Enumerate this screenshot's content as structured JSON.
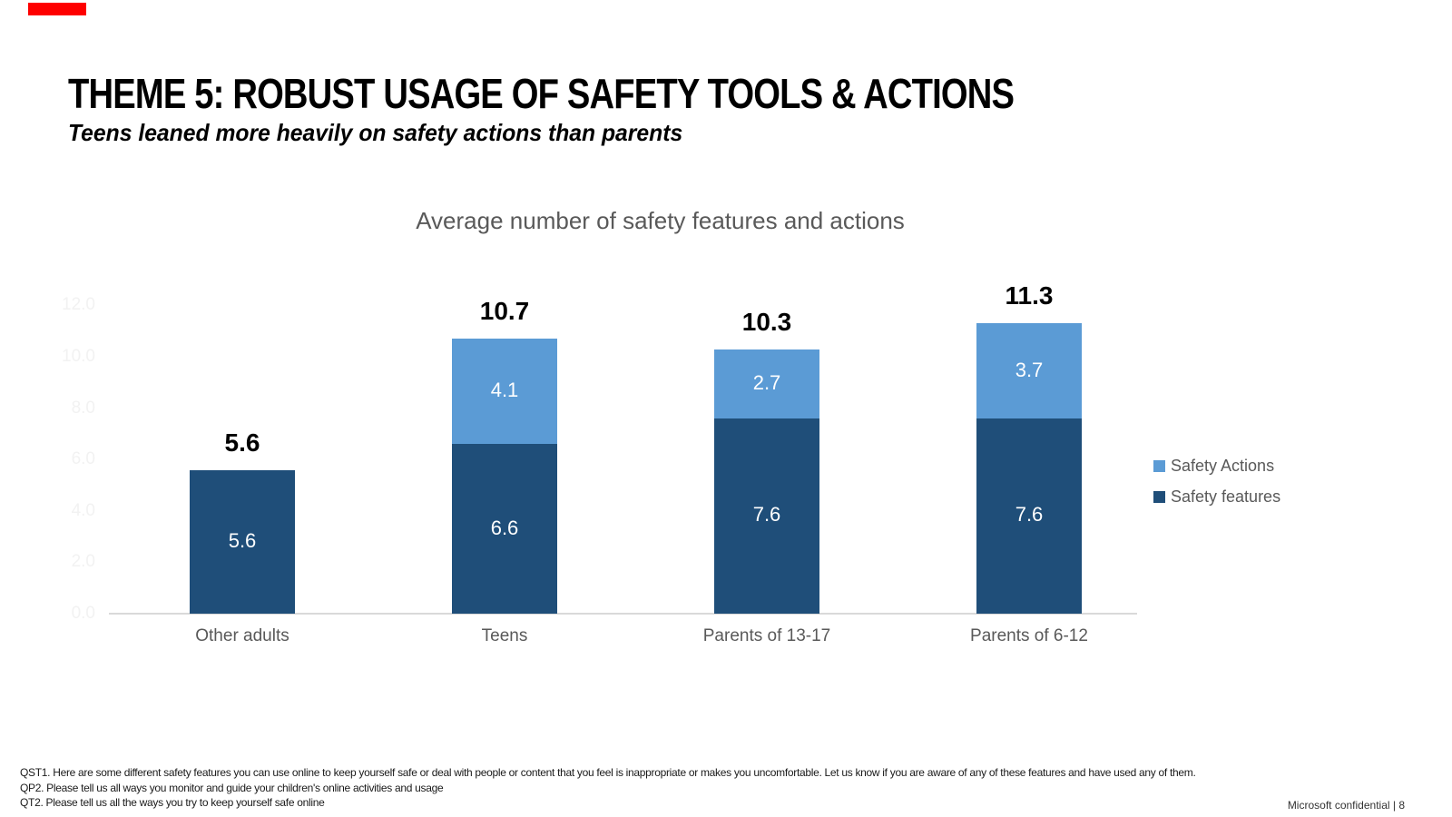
{
  "slide": {
    "title": "THEME 5: ROBUST USAGE OF SAFETY TOOLS & ACTIONS",
    "subtitle": "Teens leaned more heavily on safety actions than parents",
    "footer_lines": [
      "QST1. Here are some different safety features you can use online to keep yourself safe or deal with people or content that you feel is inappropriate or makes you uncomfortable.   Let us know if you are aware of any of these features and have used any of them.",
      "QP2. Please tell us all ways you monitor and guide your children's online activities and usage",
      "QT2. Please tell us all the ways you try to keep yourself safe online"
    ],
    "confidential": "Microsoft confidential | 8"
  },
  "chart_data": {
    "type": "bar",
    "stacked": true,
    "title": "Average number of safety features and actions",
    "categories": [
      "Other adults",
      "Teens",
      "Parents of 13-17",
      "Parents of 6-12"
    ],
    "series": [
      {
        "name": "Safety features",
        "color": "#1F4E79",
        "values": [
          5.6,
          6.6,
          7.6,
          7.6
        ]
      },
      {
        "name": "Safety Actions",
        "color": "#5B9BD5",
        "values": [
          null,
          4.1,
          2.7,
          3.7
        ]
      }
    ],
    "totals": [
      "5.6",
      "10.7",
      "10.3",
      "11.3"
    ],
    "y_axis": {
      "ticks": [
        "0.0",
        "2.0",
        "4.0",
        "6.0",
        "8.0",
        "10.0",
        "12.0"
      ],
      "min": 0,
      "max": 12,
      "step": 2
    },
    "legend": [
      {
        "label": "Safety Actions",
        "color": "#5B9BD5"
      },
      {
        "label": "Safety features",
        "color": "#1F4E79"
      }
    ],
    "legend_position": "right",
    "grid": false
  },
  "colors": {
    "dark_blue": "#1F4E79",
    "light_blue": "#5B9BD5",
    "gray_text": "#595959",
    "axis_line": "#D9D9D9",
    "faint_ticks": "#F2F2F2",
    "red_indicator": "#FE0000"
  }
}
